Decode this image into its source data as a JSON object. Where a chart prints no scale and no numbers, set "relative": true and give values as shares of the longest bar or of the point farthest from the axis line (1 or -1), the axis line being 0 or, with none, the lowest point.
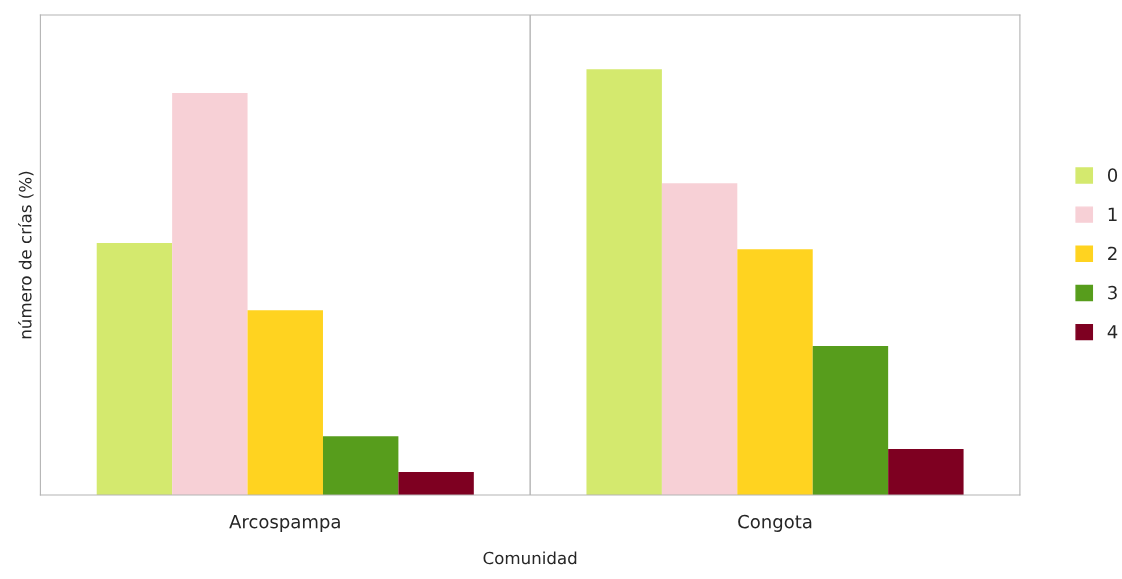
{
  "chart_data": {
    "type": "bar",
    "relative": true,
    "xlabel": "Comunidad",
    "ylabel": "número de crías (%)",
    "categories": [
      "Arcospampa",
      "Congota"
    ],
    "series": [
      {
        "name": "0",
        "color": "#d4e96e",
        "values": [
          0.592,
          1
        ]
      },
      {
        "name": "1",
        "color": "#f7d0d6",
        "values": [
          0.944,
          0.732
        ]
      },
      {
        "name": "2",
        "color": "#ffd320",
        "values": [
          0.434,
          0.577
        ]
      },
      {
        "name": "3",
        "color": "#579d1c",
        "values": [
          0.138,
          0.35
        ]
      },
      {
        "name": "4",
        "color": "#7e0021",
        "values": [
          0.054,
          0.108
        ]
      }
    ],
    "grid": "x",
    "legend": "right"
  }
}
